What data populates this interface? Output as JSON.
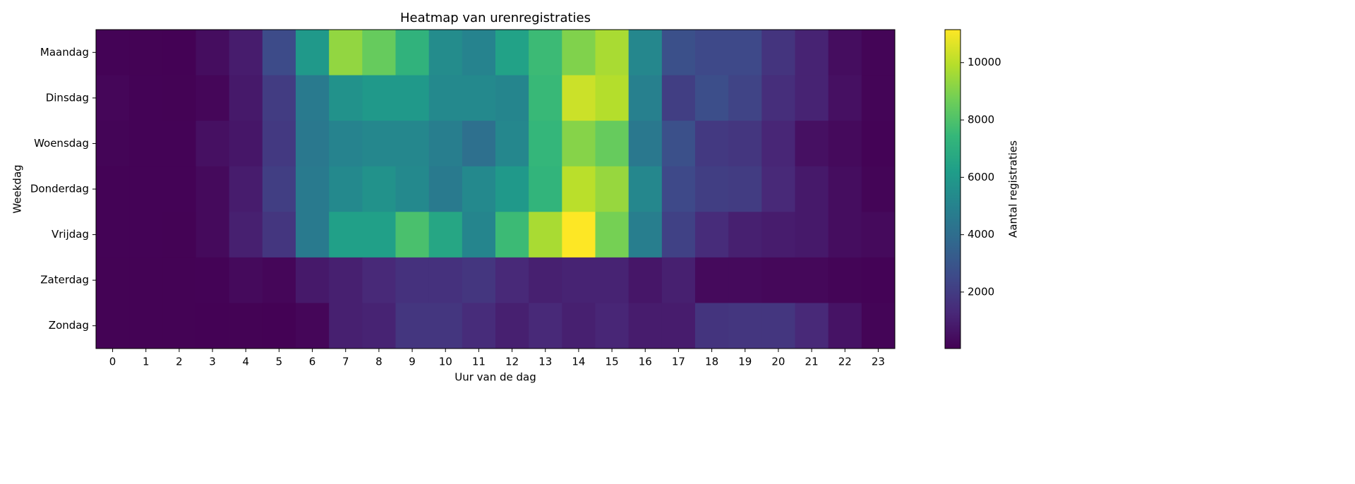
{
  "chart_data": {
    "type": "heatmap",
    "title": "Heatmap van urenregistraties",
    "x_label": "Uur van de dag",
    "y_label": "Weekdag",
    "colorbar_label": "Aantal registraties",
    "colormap": "viridis",
    "categories": [
      "0",
      "1",
      "2",
      "3",
      "4",
      "5",
      "6",
      "7",
      "8",
      "9",
      "10",
      "11",
      "12",
      "13",
      "14",
      "15",
      "16",
      "17",
      "18",
      "19",
      "20",
      "21",
      "22",
      "23"
    ],
    "rows": [
      "Maandag",
      "Dinsdag",
      "Woensdag",
      "Donderdag",
      "Vrijdag",
      "Zaterdag",
      "Zondag"
    ],
    "values": [
      [
        100,
        80,
        60,
        400,
        900,
        2600,
        6000,
        9300,
        8500,
        7200,
        5400,
        5000,
        6400,
        7600,
        9000,
        9700,
        5200,
        2800,
        2500,
        2500,
        1700,
        1100,
        400,
        150
      ],
      [
        200,
        100,
        80,
        200,
        800,
        2000,
        4600,
        5700,
        6000,
        6000,
        5300,
        5300,
        5100,
        7500,
        10300,
        9900,
        4900,
        2100,
        2700,
        2300,
        1500,
        1100,
        500,
        150
      ],
      [
        150,
        100,
        100,
        500,
        700,
        1900,
        4500,
        5000,
        5200,
        5200,
        4800,
        4100,
        5200,
        7400,
        9100,
        8500,
        4500,
        2800,
        1900,
        1800,
        1200,
        500,
        300,
        100
      ],
      [
        100,
        100,
        100,
        300,
        900,
        2100,
        4600,
        5300,
        5700,
        5300,
        4600,
        5300,
        6000,
        7300,
        10000,
        9400,
        5200,
        2500,
        2100,
        2000,
        1300,
        800,
        400,
        150
      ],
      [
        100,
        100,
        80,
        300,
        1000,
        1800,
        4600,
        6300,
        6300,
        7900,
        6600,
        5100,
        7600,
        9700,
        11150,
        8800,
        4800,
        2200,
        1400,
        1000,
        900,
        800,
        400,
        300
      ],
      [
        80,
        80,
        80,
        100,
        300,
        200,
        800,
        1000,
        1300,
        1600,
        1600,
        1800,
        1300,
        1000,
        1100,
        1100,
        700,
        1000,
        300,
        300,
        250,
        250,
        150,
        100
      ],
      [
        80,
        80,
        80,
        60,
        80,
        50,
        200,
        1000,
        1100,
        1800,
        1800,
        1400,
        1000,
        1300,
        1000,
        1200,
        900,
        900,
        1700,
        1800,
        1800,
        1300,
        600,
        150
      ]
    ],
    "zlim": [
      30,
      11150
    ],
    "zticks": [
      2000,
      4000,
      6000,
      8000,
      10000
    ]
  }
}
